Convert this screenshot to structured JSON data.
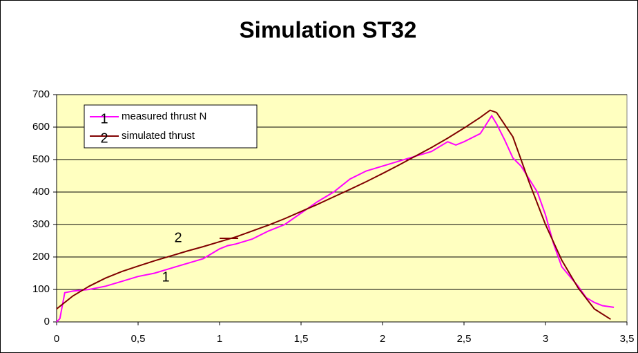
{
  "chart_data": {
    "type": "line",
    "title": "Simulation ST32",
    "xlim": [
      0,
      3.5
    ],
    "xticks": [
      0,
      {
        "value": 0.5,
        "label": "0,5"
      },
      1,
      {
        "value": 1.5,
        "label": "1,5"
      },
      2,
      {
        "value": 2.5,
        "label": "2,5"
      },
      3,
      {
        "value": 3.5,
        "label": "3,5"
      }
    ],
    "ylim": [
      0,
      700
    ],
    "yticks": [
      0,
      100,
      200,
      300,
      400,
      500,
      600,
      700
    ],
    "grid": true,
    "legend": "top-left",
    "series": [
      {
        "name": "measured thrust N",
        "label": "1",
        "color": "#ff00ff",
        "x": [
          0,
          0.02,
          0.05,
          0.1,
          0.2,
          0.3,
          0.4,
          0.5,
          0.6,
          0.7,
          0.8,
          0.9,
          1.0,
          1.05,
          1.1,
          1.2,
          1.3,
          1.4,
          1.5,
          1.6,
          1.7,
          1.8,
          1.9,
          2.0,
          2.1,
          2.2,
          2.3,
          2.4,
          2.45,
          2.5,
          2.6,
          2.67,
          2.7,
          2.75,
          2.8,
          2.85,
          2.9,
          2.95,
          3.0,
          3.05,
          3.1,
          3.2,
          3.25,
          3.3,
          3.35,
          3.42
        ],
        "values": [
          0,
          10,
          90,
          95,
          100,
          110,
          125,
          140,
          150,
          165,
          180,
          195,
          225,
          235,
          240,
          255,
          280,
          300,
          335,
          370,
          400,
          440,
          465,
          480,
          495,
          510,
          525,
          555,
          545,
          555,
          580,
          635,
          610,
          560,
          505,
          480,
          440,
          400,
          330,
          240,
          170,
          110,
          75,
          60,
          50,
          45
        ]
      },
      {
        "name": "simulated thrust",
        "label": "2",
        "color": "#800000",
        "x": [
          0,
          0.1,
          0.2,
          0.3,
          0.4,
          0.5,
          0.6,
          0.7,
          0.8,
          0.9,
          1.0,
          1.1,
          1.2,
          1.3,
          1.4,
          1.5,
          1.6,
          1.7,
          1.8,
          1.9,
          2.0,
          2.1,
          2.2,
          2.3,
          2.4,
          2.5,
          2.6,
          2.66,
          2.7,
          2.8,
          2.9,
          3.0,
          3.1,
          3.2,
          3.3,
          3.4
        ],
        "values": [
          40,
          80,
          110,
          135,
          155,
          172,
          188,
          203,
          218,
          232,
          247,
          262,
          280,
          298,
          318,
          340,
          362,
          385,
          408,
          432,
          457,
          483,
          510,
          537,
          566,
          597,
          630,
          652,
          645,
          570,
          430,
          300,
          190,
          105,
          40,
          8
        ]
      }
    ]
  }
}
